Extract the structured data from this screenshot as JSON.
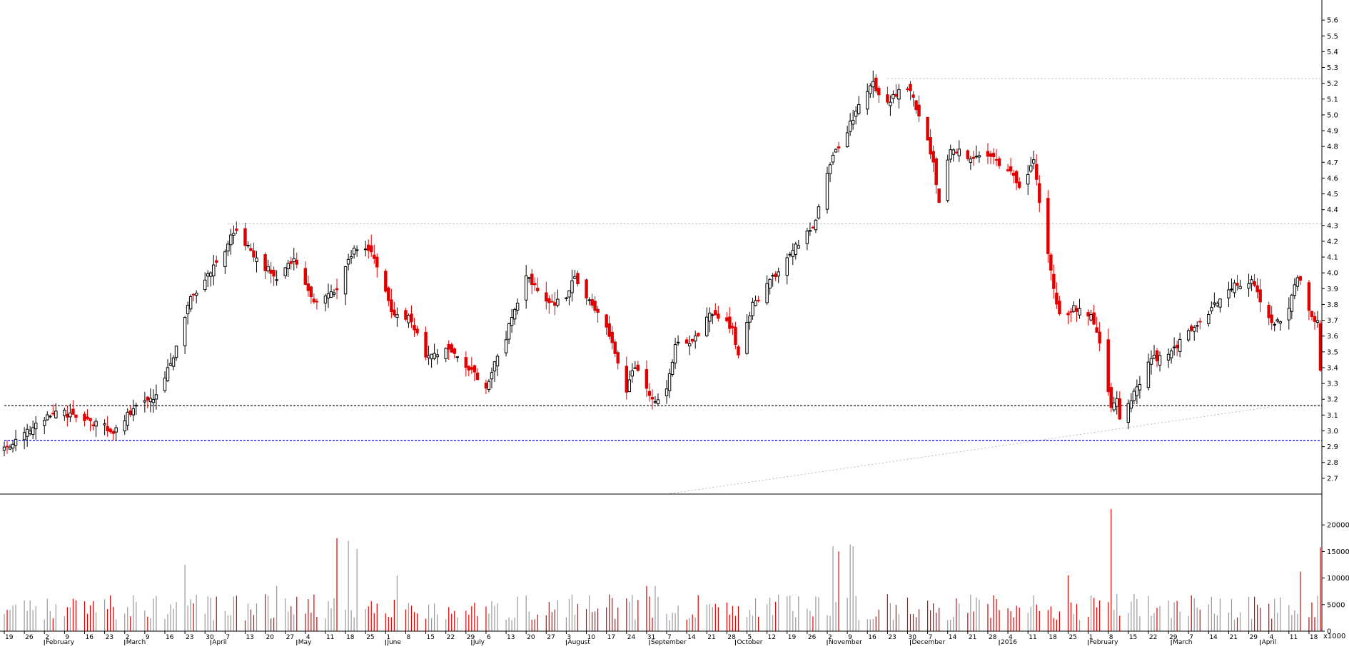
{
  "chart_data": [
    {
      "type": "candlestick",
      "panel": "price",
      "title": "",
      "ylim": [
        2.6,
        5.7
      ],
      "y_ticks": [
        "2.7",
        "2.8",
        "2.9",
        "3.0",
        "3.1",
        "3.2",
        "3.3",
        "3.4",
        "3.5",
        "3.6",
        "3.7",
        "3.8",
        "3.9",
        "4.0",
        "4.1",
        "4.2",
        "4.3",
        "4.4",
        "4.5",
        "4.6",
        "4.7",
        "4.8",
        "4.9",
        "5.0",
        "5.1",
        "5.2",
        "5.3",
        "5.4",
        "5.5",
        "5.6"
      ],
      "x_range": [
        "2015-01-19",
        "2016-04-22"
      ],
      "reference_lines": [
        {
          "value": 5.23,
          "style": "dotted",
          "color": "#999999",
          "from": "2015-11-23"
        },
        {
          "value": 4.31,
          "style": "dotted",
          "color": "#999999",
          "from": "2015-04-07"
        },
        {
          "value": 3.16,
          "style": "dashed",
          "color": "#000000",
          "from": "2015-01-19"
        },
        {
          "value": 2.94,
          "style": "dashed",
          "color": "#0000ff",
          "from": "2015-01-19"
        }
      ],
      "trendline": {
        "from": [
          "2015-09-07",
          2.6
        ],
        "to": [
          "2016-04-04",
          3.15
        ],
        "color": "#aaaaaa",
        "style": "dotted"
      },
      "anchors": [
        [
          "2015-01-19",
          2.88
        ],
        [
          "2015-01-28",
          3.02
        ],
        [
          "2015-02-06",
          3.12
        ],
        [
          "2015-02-16",
          3.08
        ],
        [
          "2015-02-26",
          3.0
        ],
        [
          "2015-03-05",
          3.14
        ],
        [
          "2015-03-12",
          3.22
        ],
        [
          "2015-03-18",
          3.42
        ],
        [
          "2015-03-25",
          3.85
        ],
        [
          "2015-04-01",
          4.0
        ],
        [
          "2015-04-10",
          4.28
        ],
        [
          "2015-04-17",
          4.08
        ],
        [
          "2015-04-24",
          3.98
        ],
        [
          "2015-04-30",
          4.08
        ],
        [
          "2015-05-07",
          3.82
        ],
        [
          "2015-05-15",
          3.88
        ],
        [
          "2015-05-21",
          4.17
        ],
        [
          "2015-05-28",
          4.1
        ],
        [
          "2015-06-03",
          3.76
        ],
        [
          "2015-06-10",
          3.7
        ],
        [
          "2015-06-15",
          3.45
        ],
        [
          "2015-06-22",
          3.52
        ],
        [
          "2015-07-01",
          3.38
        ],
        [
          "2015-07-06",
          3.25
        ],
        [
          "2015-07-09",
          3.45
        ],
        [
          "2015-07-13",
          3.6
        ],
        [
          "2015-07-20",
          3.98
        ],
        [
          "2015-07-28",
          3.8
        ],
        [
          "2015-08-03",
          3.85
        ],
        [
          "2015-08-06",
          3.98
        ],
        [
          "2015-08-11",
          3.82
        ],
        [
          "2015-08-18",
          3.62
        ],
        [
          "2015-08-24",
          3.25
        ],
        [
          "2015-08-27",
          3.42
        ],
        [
          "2015-09-02",
          3.2
        ],
        [
          "2015-09-07",
          3.25
        ],
        [
          "2015-09-10",
          3.55
        ],
        [
          "2015-09-16",
          3.55
        ],
        [
          "2015-09-22",
          3.75
        ],
        [
          "2015-09-30",
          3.65
        ],
        [
          "2015-10-02",
          3.48
        ],
        [
          "2015-10-07",
          3.8
        ],
        [
          "2015-10-13",
          3.95
        ],
        [
          "2015-10-21",
          4.15
        ],
        [
          "2015-10-28",
          4.28
        ],
        [
          "2015-11-03",
          4.7
        ],
        [
          "2015-11-09",
          4.9
        ],
        [
          "2015-11-13",
          5.05
        ],
        [
          "2015-11-18",
          5.2
        ],
        [
          "2015-11-23",
          5.08
        ],
        [
          "2015-11-30",
          5.18
        ],
        [
          "2015-12-04",
          5.0
        ],
        [
          "2015-12-09",
          4.7
        ],
        [
          "2015-12-11",
          4.45
        ],
        [
          "2015-12-15",
          4.8
        ],
        [
          "2015-12-21",
          4.72
        ],
        [
          "2015-12-28",
          4.76
        ],
        [
          "2016-01-04",
          4.65
        ],
        [
          "2016-01-08",
          4.55
        ],
        [
          "2016-01-13",
          4.7
        ],
        [
          "2016-01-18",
          4.1
        ],
        [
          "2016-01-22",
          3.72
        ],
        [
          "2016-01-27",
          3.78
        ],
        [
          "2016-02-02",
          3.72
        ],
        [
          "2016-02-05",
          3.55
        ],
        [
          "2016-02-09",
          3.15
        ],
        [
          "2016-02-11",
          3.18
        ],
        [
          "2016-02-12",
          3.05
        ],
        [
          "2016-02-17",
          3.25
        ],
        [
          "2016-02-23",
          3.45
        ],
        [
          "2016-03-01",
          3.5
        ],
        [
          "2016-03-08",
          3.65
        ],
        [
          "2016-03-15",
          3.78
        ],
        [
          "2016-03-22",
          3.92
        ],
        [
          "2016-03-29",
          3.95
        ],
        [
          "2016-04-04",
          3.7
        ],
        [
          "2016-04-07",
          3.68
        ],
        [
          "2016-04-11",
          3.78
        ],
        [
          "2016-04-14",
          3.98
        ],
        [
          "2016-04-18",
          3.78
        ],
        [
          "2016-04-21",
          3.68
        ],
        [
          "2016-04-22",
          3.38
        ]
      ],
      "notes": "Daily candles; hollow = up day (black outline), red = down day. Close path given by anchor points read from the chart."
    },
    {
      "type": "bar",
      "panel": "volume",
      "ylim": [
        0,
        25000
      ],
      "y_ticks": [
        "0",
        "5000",
        "10000",
        "15000",
        "20000"
      ],
      "color_rule": "red on down days, gray on up days",
      "spikes": [
        [
          "2015-03-23",
          12500
        ],
        [
          "2015-04-24",
          8500
        ],
        [
          "2015-05-15",
          17500
        ],
        [
          "2015-05-19",
          17000
        ],
        [
          "2015-05-22",
          15500
        ],
        [
          "2015-06-05",
          10500
        ],
        [
          "2015-08-31",
          8500
        ],
        [
          "2015-09-03",
          8500
        ],
        [
          "2015-11-04",
          16000
        ],
        [
          "2015-11-06",
          15000
        ],
        [
          "2015-11-10",
          16300
        ],
        [
          "2015-11-11",
          16000
        ],
        [
          "2016-01-25",
          10500
        ],
        [
          "2016-02-09",
          23000
        ],
        [
          "2016-04-15",
          11200
        ],
        [
          "2016-04-22",
          15800
        ]
      ],
      "typical_range": [
        2000,
        7000
      ],
      "y_unit_label": "x1000"
    }
  ],
  "x_axis": {
    "day_ticks": [
      "19",
      "26",
      "2",
      "9",
      "16",
      "23",
      "2",
      "9",
      "16",
      "23",
      "30",
      "7",
      "13",
      "20",
      "27",
      "4",
      "11",
      "18",
      "25",
      "1",
      "8",
      "15",
      "22",
      "29",
      "6",
      "13",
      "20",
      "27",
      "3",
      "10",
      "17",
      "24",
      "31",
      "7",
      "14",
      "21",
      "28",
      "5",
      "12",
      "19",
      "26",
      "2",
      "9",
      "16",
      "23",
      "30",
      "7",
      "14",
      "21",
      "28",
      "4",
      "11",
      "18",
      "25",
      "1",
      "8",
      "15",
      "22",
      "29",
      "7",
      "14",
      "21",
      "29",
      "4",
      "11",
      "18"
    ],
    "month_labels": [
      "February",
      "March",
      "April",
      "May",
      "June",
      "July",
      "August",
      "September",
      "October",
      "November",
      "December",
      "2016",
      "February",
      "March",
      "April"
    ]
  }
}
